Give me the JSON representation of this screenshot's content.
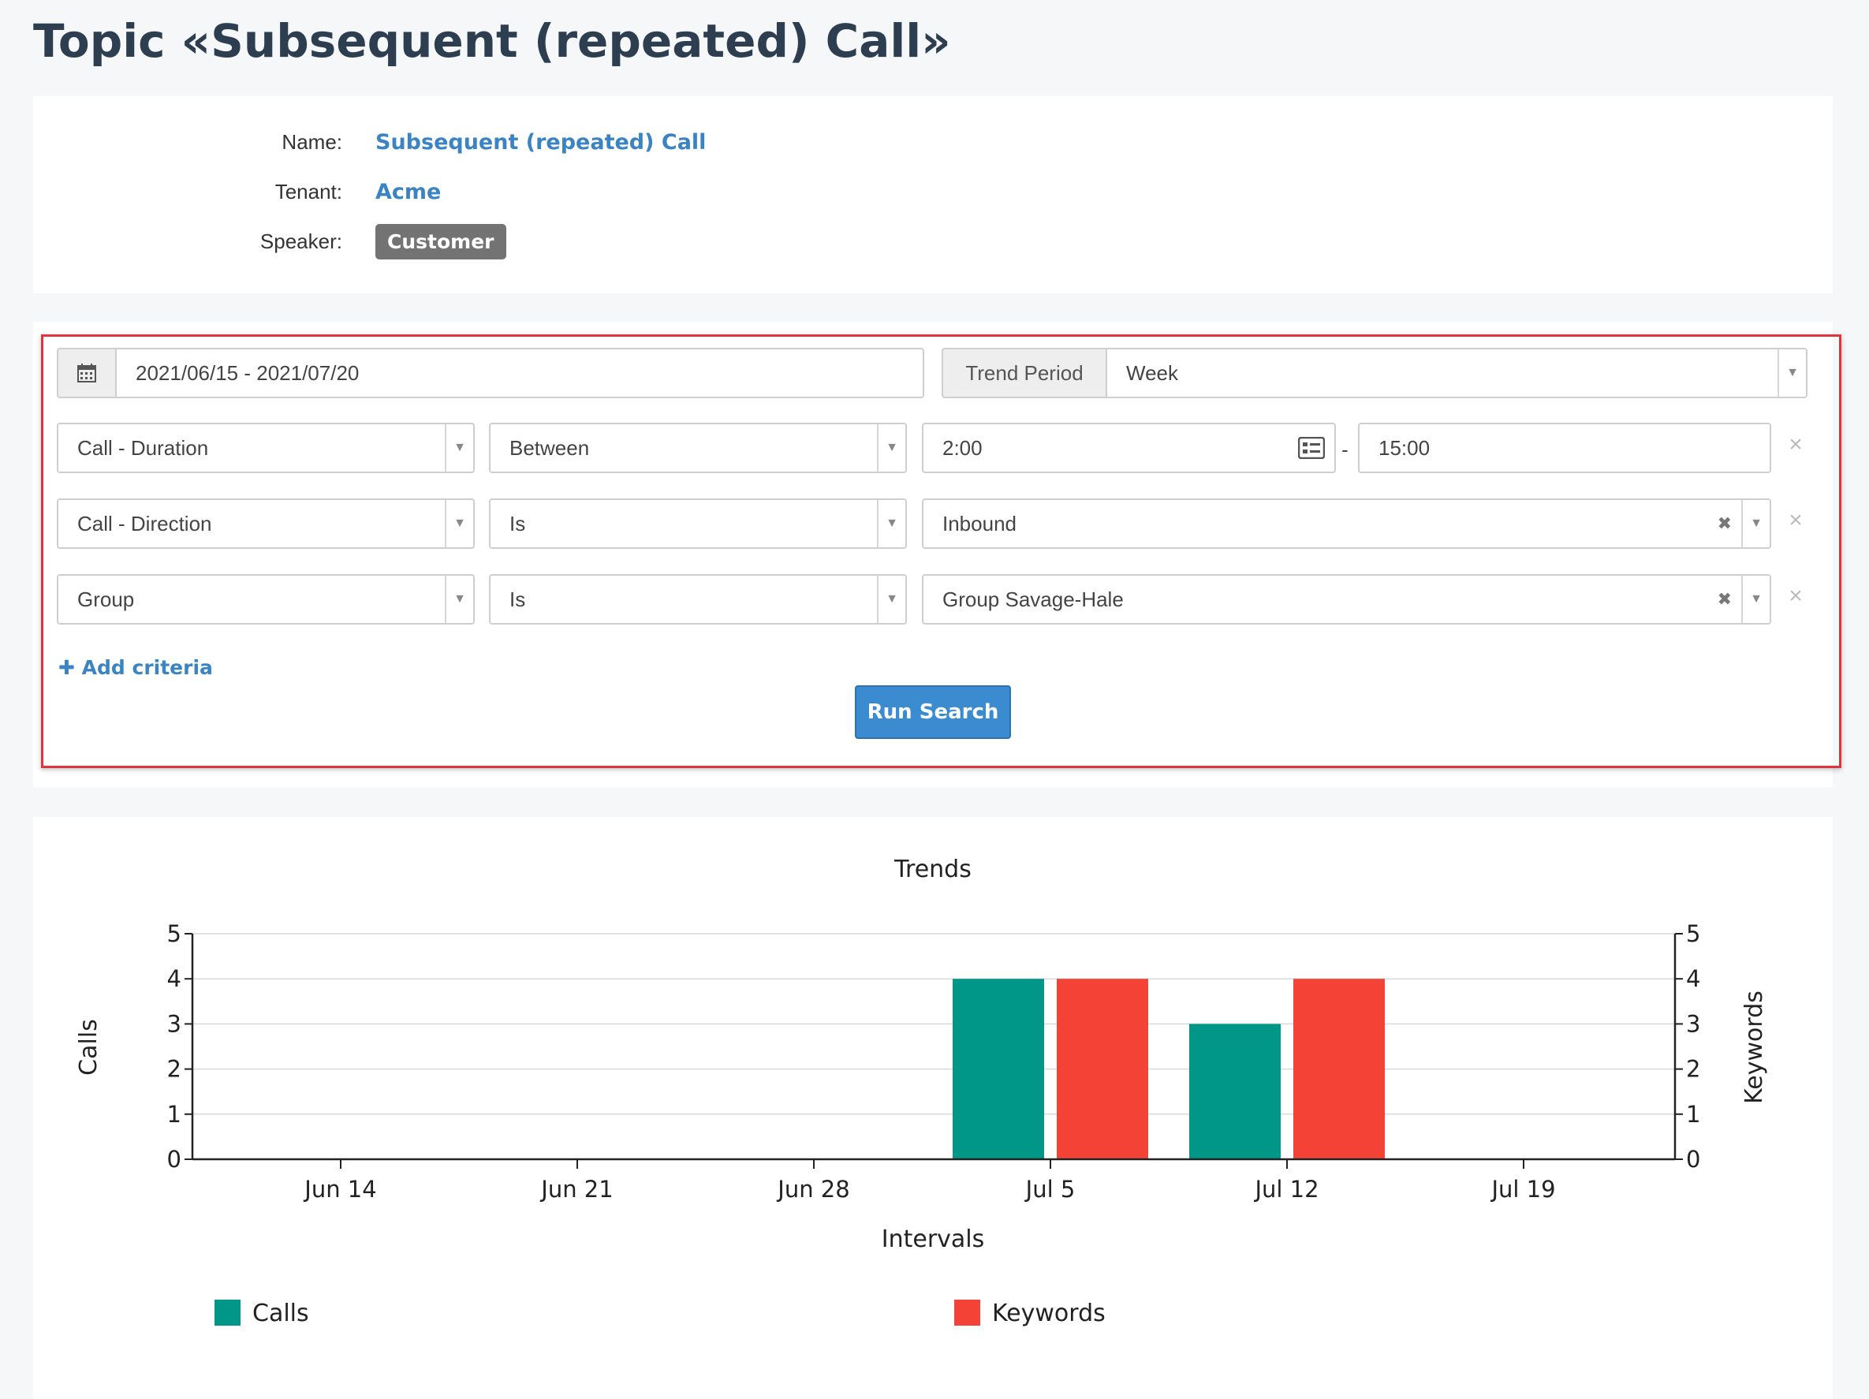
{
  "page": {
    "title": "Topic «Subsequent (repeated) Call»"
  },
  "info": {
    "name_label": "Name:",
    "name_value": "Subsequent (repeated) Call",
    "tenant_label": "Tenant:",
    "tenant_value": "Acme",
    "speaker_label": "Speaker:",
    "speaker_value": "Customer"
  },
  "search": {
    "date_range": "2021/06/15 - 2021/07/20",
    "trend_period_label": "Trend Period",
    "trend_period_value": "Week",
    "criteria": [
      {
        "field": "Call - Duration",
        "operator": "Between",
        "value_from": "2:00",
        "value_to": "15:00"
      },
      {
        "field": "Call - Direction",
        "operator": "Is",
        "value": "Inbound"
      },
      {
        "field": "Group",
        "operator": "Is",
        "value": "Group Savage-Hale"
      }
    ],
    "range_separator": "-",
    "add_criteria_label": "Add criteria",
    "run_label": "Run Search",
    "icons": {
      "calendar": "calendar-icon",
      "remove": "close-icon",
      "caret": "chevron-down-icon",
      "time": "keyboard-icon",
      "add": "plus-icon"
    }
  },
  "chart_data": {
    "type": "bar",
    "title": "Trends",
    "xlabel": "Intervals",
    "ylabel": "Calls",
    "y2label": "Keywords",
    "categories": [
      "Jun 14",
      "Jun 21",
      "Jun 28",
      "Jul 5",
      "Jul 12",
      "Jul 19"
    ],
    "series": [
      {
        "name": "Calls",
        "color": "#009688",
        "values": [
          0,
          0,
          0,
          4,
          3,
          0
        ]
      },
      {
        "name": "Keywords",
        "color": "#f44336",
        "values": [
          0,
          0,
          0,
          4,
          4,
          0
        ]
      }
    ],
    "ylim": [
      0,
      5
    ],
    "yticks": [
      "0",
      "1",
      "2",
      "3",
      "4",
      "5"
    ],
    "grid": true,
    "legend": "bottom"
  }
}
